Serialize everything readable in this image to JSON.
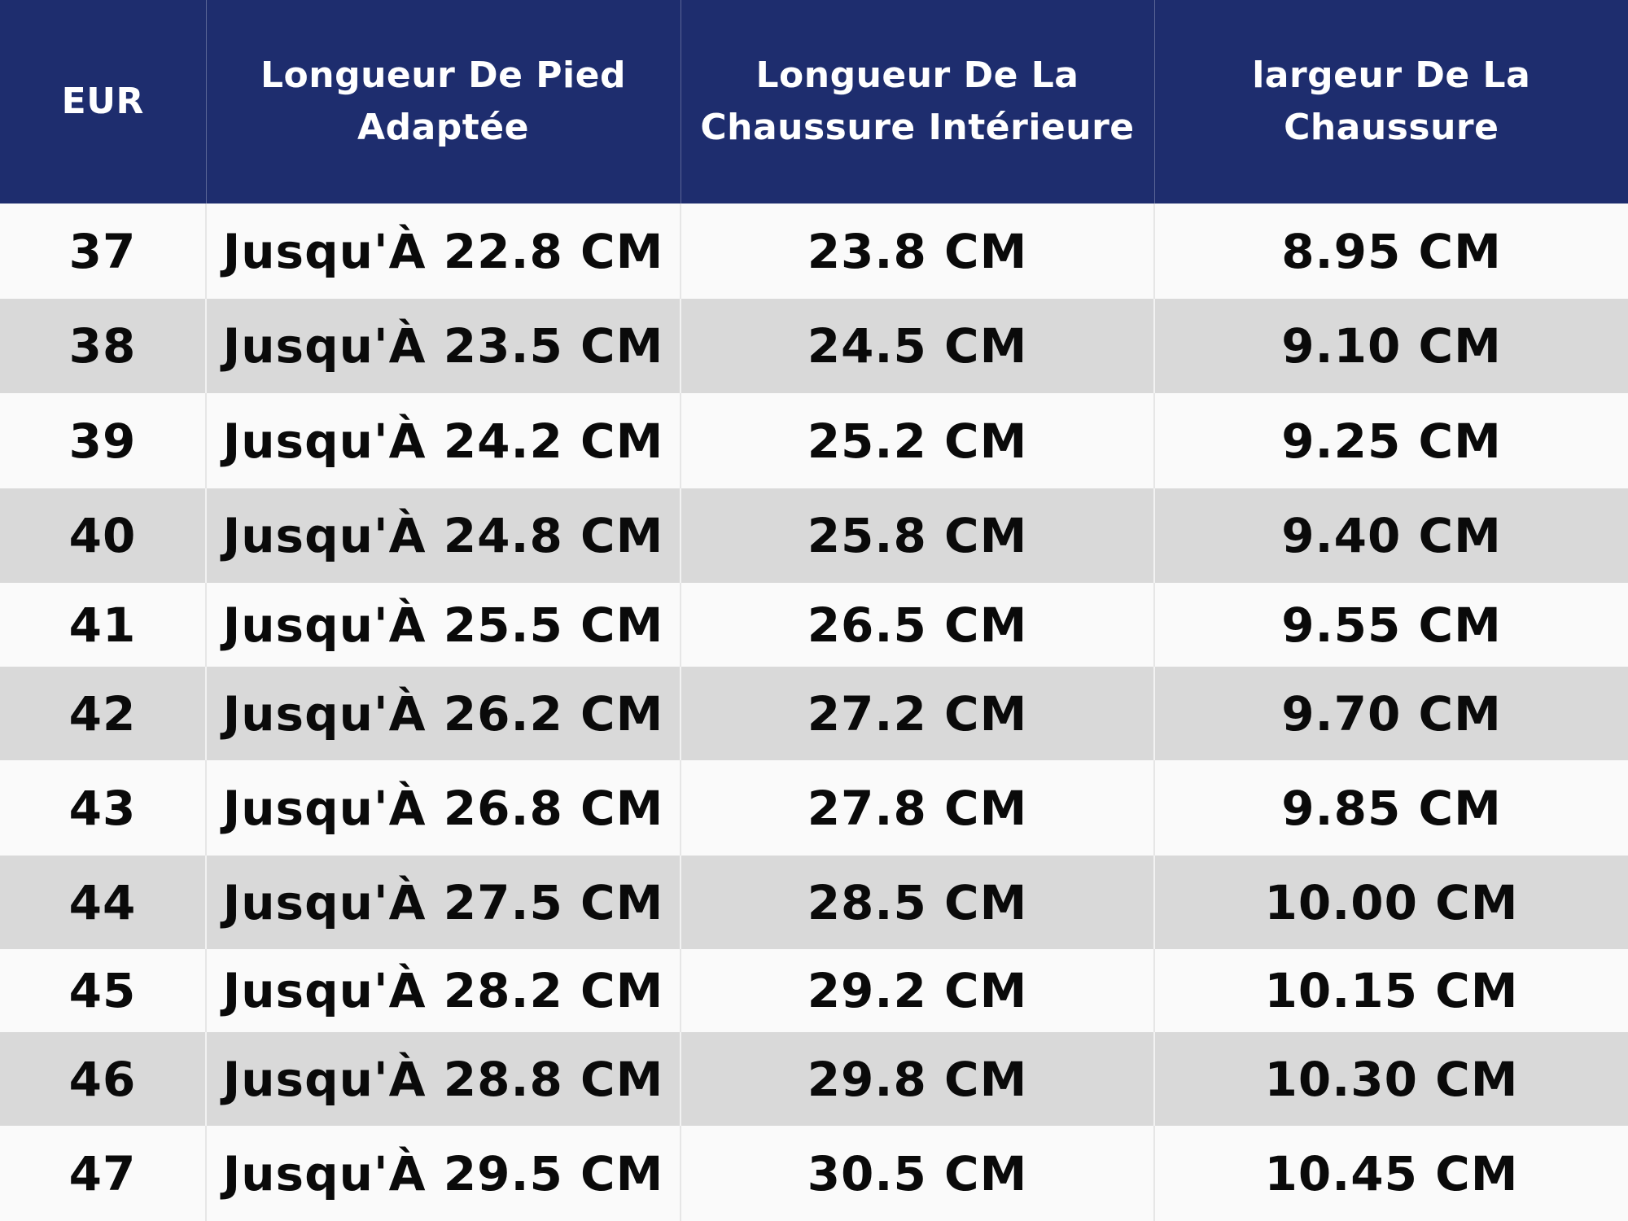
{
  "header_color": "#1e2d6e",
  "headers": [
    "EUR",
    "Longueur De Pied Adaptée",
    "Longueur De La Chaussure Intérieure",
    "largeur De La Chaussure"
  ],
  "rows": [
    [
      "37",
      "Jusqu'À 22.8 CM",
      "23.8 CM",
      "8.95 CM"
    ],
    [
      "38",
      "Jusqu'À 23.5 CM",
      "24.5 CM",
      "9.10 CM"
    ],
    [
      "39",
      "Jusqu'À 24.2 CM",
      "25.2 CM",
      "9.25 CM"
    ],
    [
      "40",
      "Jusqu'À 24.8 CM",
      "25.8 CM",
      "9.40 CM"
    ],
    [
      "41",
      "Jusqu'À 25.5 CM",
      "26.5 CM",
      "9.55 CM"
    ],
    [
      "42",
      "Jusqu'À 26.2 CM",
      "27.2 CM",
      "9.70 CM"
    ],
    [
      "43",
      "Jusqu'À 26.8 CM",
      "27.8 CM",
      "9.85 CM"
    ],
    [
      "44",
      "Jusqu'À 27.5 CM",
      "28.5 CM",
      "10.00 CM"
    ],
    [
      "45",
      "Jusqu'À 28.2 CM",
      "29.2 CM",
      "10.15 CM"
    ],
    [
      "46",
      "Jusqu'À 28.8 CM",
      "29.8 CM",
      "10.30 CM"
    ],
    [
      "47",
      "Jusqu'À 29.5 CM",
      "30.5 CM",
      "10.45 CM"
    ]
  ]
}
